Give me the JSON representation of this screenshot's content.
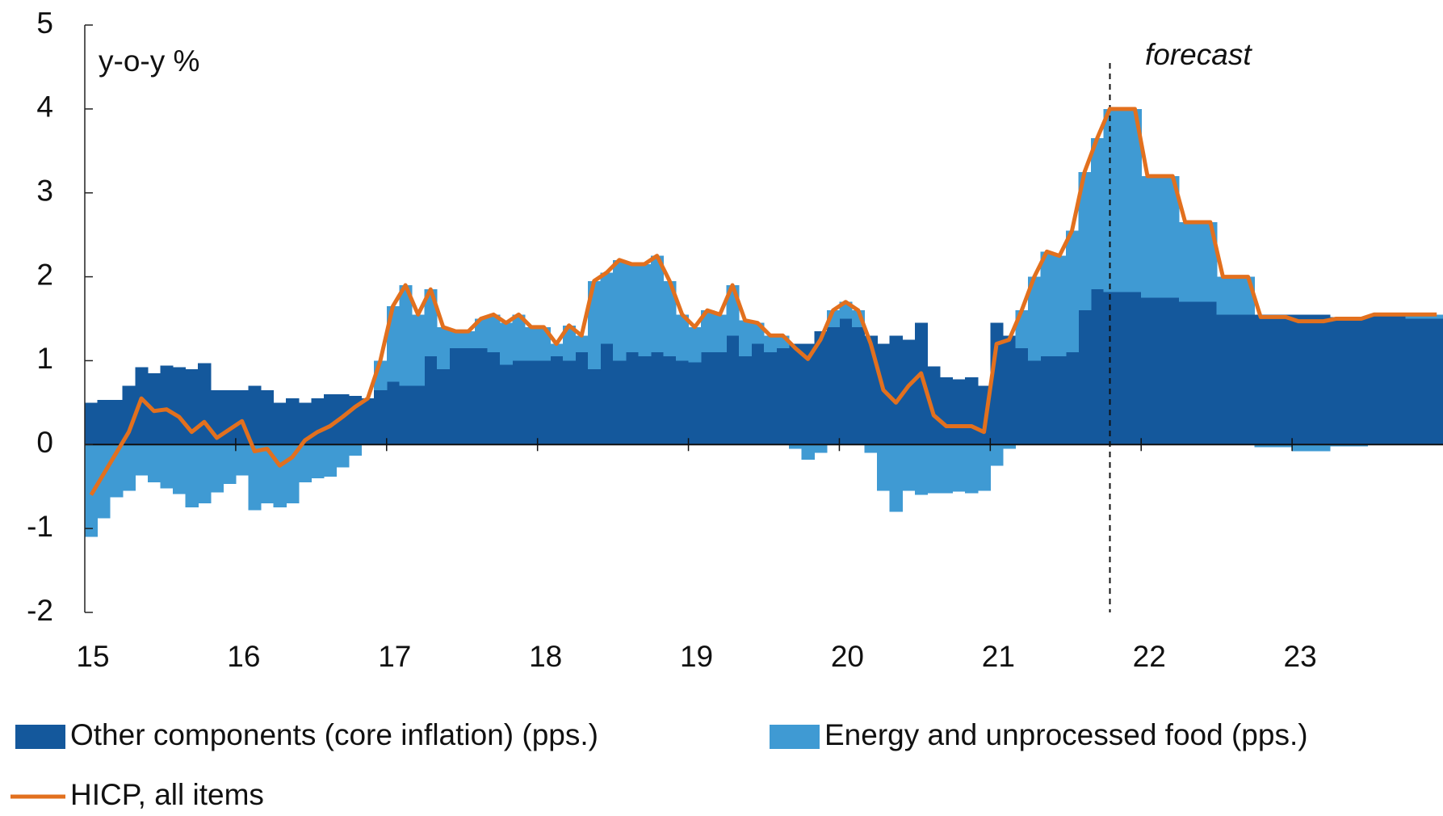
{
  "chart_data": {
    "type": "bar",
    "stacked": true,
    "y_label": "y-o-y %",
    "annotation": "forecast",
    "categories": [
      "15",
      null,
      null,
      null,
      null,
      null,
      null,
      null,
      null,
      null,
      null,
      null,
      "16",
      null,
      null,
      null,
      null,
      null,
      null,
      null,
      null,
      null,
      null,
      null,
      "17",
      null,
      null,
      null,
      null,
      null,
      null,
      null,
      null,
      null,
      null,
      null,
      "18",
      null,
      null,
      null,
      null,
      null,
      null,
      null,
      null,
      null,
      null,
      null,
      "19",
      null,
      null,
      null,
      null,
      null,
      null,
      null,
      null,
      null,
      null,
      null,
      "20",
      null,
      null,
      null,
      null,
      null,
      null,
      null,
      null,
      null,
      null,
      null,
      "21",
      null,
      null,
      null,
      null,
      null,
      null,
      null,
      null,
      null,
      null,
      null,
      "22",
      null,
      null,
      null,
      null,
      null,
      null,
      null,
      null,
      null,
      null,
      null,
      "23",
      null,
      null,
      null,
      null,
      null,
      null,
      null,
      null,
      null,
      null,
      null
    ],
    "series": [
      {
        "name": "Other components (core inflation) (pps.)",
        "type": "bar",
        "color": "#14589c",
        "values": [
          0.5,
          0.53,
          0.53,
          0.7,
          0.92,
          0.85,
          0.94,
          0.92,
          0.9,
          0.97,
          0.65,
          0.65,
          0.65,
          0.7,
          0.65,
          0.5,
          0.55,
          0.5,
          0.55,
          0.6,
          0.6,
          0.58,
          0.55,
          0.65,
          0.75,
          0.7,
          0.7,
          1.05,
          0.9,
          1.15,
          1.15,
          1.15,
          1.1,
          0.95,
          1.0,
          1.0,
          1.0,
          1.05,
          1.0,
          1.1,
          0.9,
          1.2,
          1.0,
          1.1,
          1.05,
          1.1,
          1.05,
          1.0,
          0.98,
          1.1,
          1.1,
          1.3,
          1.05,
          1.2,
          1.1,
          1.15,
          1.2,
          1.2,
          1.35,
          1.4,
          1.5,
          1.4,
          1.3,
          1.2,
          1.3,
          1.25,
          1.45,
          0.93,
          0.8,
          0.78,
          0.8,
          0.7,
          1.45,
          1.3,
          1.15,
          1.0,
          1.05,
          1.05,
          1.1,
          1.6,
          1.85,
          1.82,
          1.82,
          1.82,
          1.75,
          1.75,
          1.75,
          1.7,
          1.7,
          1.7,
          1.55,
          1.55,
          1.55,
          1.55,
          1.55,
          1.55,
          1.55,
          1.55,
          1.55,
          1.52,
          1.52,
          1.52,
          1.55,
          1.55,
          1.55,
          1.5,
          1.5,
          1.5
        ]
      },
      {
        "name": "Energy and unprocessed food (pps.)",
        "type": "bar",
        "color": "#3f9ad3",
        "values": [
          -1.1,
          -0.88,
          -0.63,
          -0.55,
          -0.37,
          -0.45,
          -0.52,
          -0.59,
          -0.75,
          -0.7,
          -0.57,
          -0.47,
          -0.37,
          -0.78,
          -0.7,
          -0.75,
          -0.7,
          -0.45,
          -0.4,
          -0.38,
          -0.27,
          -0.13,
          0,
          0.35,
          0.9,
          1.2,
          0.85,
          0.8,
          0.5,
          0.2,
          0.2,
          0.35,
          0.45,
          0.5,
          0.55,
          0.4,
          0.4,
          0.15,
          0.42,
          0.2,
          1.05,
          0.85,
          1.2,
          1.05,
          1.1,
          1.15,
          0.9,
          0.55,
          0.42,
          0.5,
          0.45,
          0.6,
          0.43,
          0.25,
          0.2,
          0.15,
          -0.05,
          -0.18,
          -0.1,
          0.2,
          0.2,
          0.2,
          -0.1,
          -0.55,
          -0.8,
          -0.55,
          -0.6,
          -0.58,
          -0.58,
          -0.56,
          -0.58,
          -0.55,
          -0.25,
          -0.05,
          0.45,
          1.0,
          1.25,
          1.2,
          1.45,
          1.65,
          1.8,
          2.18,
          2.18,
          2.18,
          1.45,
          1.45,
          1.45,
          0.95,
          0.95,
          0.95,
          0.45,
          0.45,
          0.45,
          -0.03,
          -0.03,
          -0.03,
          -0.08,
          -0.08,
          -0.08,
          -0.02,
          -0.02,
          -0.02,
          0,
          0,
          0,
          0.05,
          0.05,
          0.05
        ]
      },
      {
        "name": "HICP, all items",
        "type": "line",
        "color": "#e2701e",
        "values": [
          -0.6,
          -0.35,
          -0.1,
          0.15,
          0.55,
          0.4,
          0.42,
          0.33,
          0.15,
          0.27,
          0.08,
          0.18,
          0.28,
          -0.08,
          -0.05,
          -0.25,
          -0.15,
          0.05,
          0.15,
          0.22,
          0.33,
          0.45,
          0.55,
          1.0,
          1.65,
          1.9,
          1.55,
          1.85,
          1.4,
          1.35,
          1.35,
          1.5,
          1.55,
          1.45,
          1.55,
          1.4,
          1.4,
          1.2,
          1.42,
          1.3,
          1.95,
          2.05,
          2.2,
          2.15,
          2.15,
          2.25,
          1.95,
          1.55,
          1.4,
          1.6,
          1.55,
          1.9,
          1.48,
          1.45,
          1.3,
          1.3,
          1.15,
          1.02,
          1.25,
          1.6,
          1.7,
          1.6,
          1.2,
          0.65,
          0.5,
          0.7,
          0.85,
          0.35,
          0.22,
          0.22,
          0.22,
          0.15,
          1.2,
          1.25,
          1.6,
          2.0,
          2.3,
          2.25,
          2.55,
          3.25,
          3.65,
          4.0,
          4.0,
          4.0,
          3.2,
          3.2,
          3.2,
          2.65,
          2.65,
          2.65,
          2.0,
          2.0,
          2.0,
          1.52,
          1.52,
          1.52,
          1.47,
          1.47,
          1.47,
          1.5,
          1.5,
          1.5,
          1.55,
          1.55,
          1.55,
          1.55,
          1.55,
          1.55
        ]
      }
    ],
    "ylim": [
      -2,
      5
    ],
    "yticks": [
      -2,
      -1,
      0,
      1,
      2,
      3,
      4,
      5
    ],
    "grid": false
  }
}
